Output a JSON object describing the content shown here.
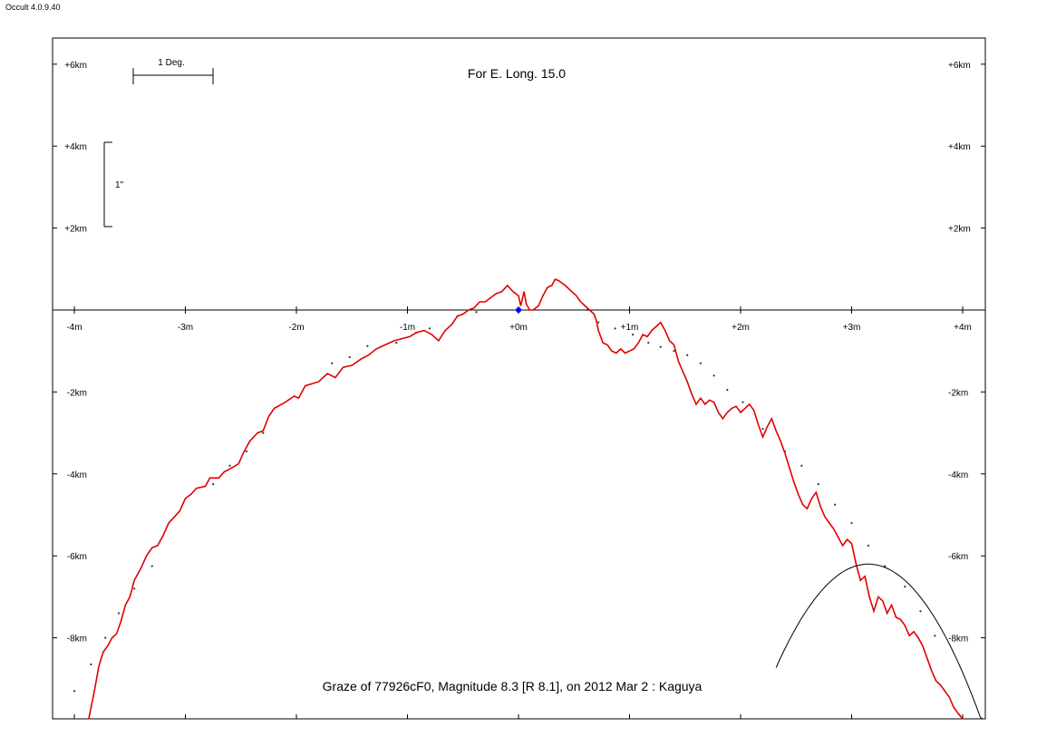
{
  "app": {
    "version": "Occult 4.0.9.40"
  },
  "chart_data": {
    "type": "line",
    "title": "For E. Long. 15.0",
    "caption": "Graze of  77926cF0,  Magnitude 8.3 [R 8.1],  on 2012 Mar  2  :  Kaguya",
    "scale_labels": {
      "degree": "1 Deg.",
      "arcsec": "1\""
    },
    "xlim": [
      -4.1,
      4.3
    ],
    "ylim": [
      -10,
      6.6
    ],
    "grid": false,
    "x_ticks": [
      {
        "value": -4,
        "label": "-4m"
      },
      {
        "value": -3,
        "label": "-3m"
      },
      {
        "value": -2,
        "label": "-2m"
      },
      {
        "value": -1,
        "label": "-1m"
      },
      {
        "value": 0,
        "label": "+0m"
      },
      {
        "value": 1,
        "label": "+1m"
      },
      {
        "value": 2,
        "label": "+2m"
      },
      {
        "value": 3,
        "label": "+3m"
      },
      {
        "value": 4,
        "label": "+4m"
      }
    ],
    "y_ticks": [
      {
        "value": 6,
        "label": "+6km"
      },
      {
        "value": 4,
        "label": "+4km"
      },
      {
        "value": 2,
        "label": "+2km"
      },
      {
        "value": -2,
        "label": "-2km"
      },
      {
        "value": -4,
        "label": "-4km"
      },
      {
        "value": -6,
        "label": "-6km"
      },
      {
        "value": -8,
        "label": "-8km"
      }
    ],
    "colors": {
      "profile": "#e00000",
      "reference": "#333333",
      "central_point": "#0000ff",
      "curve": "#000000"
    },
    "series": [
      {
        "kind": "limb_profile_line",
        "points": [
          [
            -3.87,
            -10.0
          ],
          [
            -3.82,
            -9.3
          ],
          [
            -3.78,
            -8.7
          ],
          [
            -3.74,
            -8.35
          ],
          [
            -3.7,
            -8.2
          ],
          [
            -3.66,
            -8.0
          ],
          [
            -3.62,
            -7.9
          ],
          [
            -3.58,
            -7.6
          ],
          [
            -3.54,
            -7.2
          ],
          [
            -3.5,
            -7.0
          ],
          [
            -3.46,
            -6.6
          ],
          [
            -3.4,
            -6.3
          ],
          [
            -3.35,
            -6.0
          ],
          [
            -3.3,
            -5.8
          ],
          [
            -3.25,
            -5.75
          ],
          [
            -3.2,
            -5.5
          ],
          [
            -3.15,
            -5.2
          ],
          [
            -3.1,
            -5.05
          ],
          [
            -3.05,
            -4.9
          ],
          [
            -3.0,
            -4.6
          ],
          [
            -2.95,
            -4.5
          ],
          [
            -2.9,
            -4.35
          ],
          [
            -2.82,
            -4.3
          ],
          [
            -2.78,
            -4.1
          ],
          [
            -2.7,
            -4.1
          ],
          [
            -2.65,
            -3.95
          ],
          [
            -2.58,
            -3.85
          ],
          [
            -2.52,
            -3.75
          ],
          [
            -2.48,
            -3.5
          ],
          [
            -2.42,
            -3.2
          ],
          [
            -2.35,
            -3.0
          ],
          [
            -2.3,
            -2.95
          ],
          [
            -2.25,
            -2.6
          ],
          [
            -2.2,
            -2.4
          ],
          [
            -2.1,
            -2.25
          ],
          [
            -2.02,
            -2.1
          ],
          [
            -1.98,
            -2.15
          ],
          [
            -1.92,
            -1.85
          ],
          [
            -1.8,
            -1.75
          ],
          [
            -1.72,
            -1.55
          ],
          [
            -1.65,
            -1.65
          ],
          [
            -1.58,
            -1.4
          ],
          [
            -1.5,
            -1.35
          ],
          [
            -1.42,
            -1.2
          ],
          [
            -1.35,
            -1.1
          ],
          [
            -1.28,
            -0.95
          ],
          [
            -1.2,
            -0.85
          ],
          [
            -1.12,
            -0.75
          ],
          [
            -1.05,
            -0.7
          ],
          [
            -0.98,
            -0.65
          ],
          [
            -0.92,
            -0.55
          ],
          [
            -0.85,
            -0.5
          ],
          [
            -0.78,
            -0.6
          ],
          [
            -0.72,
            -0.75
          ],
          [
            -0.66,
            -0.5
          ],
          [
            -0.6,
            -0.35
          ],
          [
            -0.55,
            -0.15
          ],
          [
            -0.5,
            -0.1
          ],
          [
            -0.45,
            0.0
          ],
          [
            -0.4,
            0.05
          ],
          [
            -0.35,
            0.2
          ],
          [
            -0.3,
            0.2
          ],
          [
            -0.25,
            0.3
          ],
          [
            -0.2,
            0.4
          ],
          [
            -0.15,
            0.45
          ],
          [
            -0.1,
            0.6
          ],
          [
            -0.05,
            0.45
          ],
          [
            0.0,
            0.35
          ],
          [
            0.02,
            0.1
          ],
          [
            0.05,
            0.45
          ],
          [
            0.07,
            0.15
          ],
          [
            0.1,
            0.0
          ],
          [
            0.13,
            0.0
          ],
          [
            0.18,
            0.1
          ],
          [
            0.22,
            0.35
          ],
          [
            0.26,
            0.55
          ],
          [
            0.3,
            0.6
          ],
          [
            0.33,
            0.75
          ],
          [
            0.36,
            0.72
          ],
          [
            0.42,
            0.6
          ],
          [
            0.48,
            0.45
          ],
          [
            0.52,
            0.35
          ],
          [
            0.56,
            0.2
          ],
          [
            0.6,
            0.1
          ],
          [
            0.64,
            0.0
          ],
          [
            0.68,
            -0.1
          ],
          [
            0.7,
            -0.25
          ],
          [
            0.72,
            -0.5
          ],
          [
            0.76,
            -0.8
          ],
          [
            0.8,
            -0.85
          ],
          [
            0.84,
            -1.0
          ],
          [
            0.88,
            -1.05
          ],
          [
            0.92,
            -0.95
          ],
          [
            0.96,
            -1.05
          ],
          [
            1.0,
            -1.0
          ],
          [
            1.04,
            -0.95
          ],
          [
            1.08,
            -0.8
          ],
          [
            1.12,
            -0.6
          ],
          [
            1.16,
            -0.65
          ],
          [
            1.2,
            -0.5
          ],
          [
            1.24,
            -0.4
          ],
          [
            1.28,
            -0.3
          ],
          [
            1.32,
            -0.5
          ],
          [
            1.36,
            -0.75
          ],
          [
            1.4,
            -0.85
          ],
          [
            1.44,
            -1.25
          ],
          [
            1.48,
            -1.5
          ],
          [
            1.52,
            -1.75
          ],
          [
            1.56,
            -2.05
          ],
          [
            1.6,
            -2.3
          ],
          [
            1.64,
            -2.15
          ],
          [
            1.68,
            -2.3
          ],
          [
            1.72,
            -2.2
          ],
          [
            1.76,
            -2.25
          ],
          [
            1.8,
            -2.5
          ],
          [
            1.84,
            -2.65
          ],
          [
            1.88,
            -2.5
          ],
          [
            1.92,
            -2.4
          ],
          [
            1.96,
            -2.35
          ],
          [
            2.0,
            -2.5
          ],
          [
            2.04,
            -2.4
          ],
          [
            2.08,
            -2.3
          ],
          [
            2.12,
            -2.45
          ],
          [
            2.16,
            -2.8
          ],
          [
            2.2,
            -3.1
          ],
          [
            2.24,
            -2.85
          ],
          [
            2.28,
            -2.65
          ],
          [
            2.32,
            -2.95
          ],
          [
            2.36,
            -3.2
          ],
          [
            2.4,
            -3.5
          ],
          [
            2.44,
            -3.85
          ],
          [
            2.48,
            -4.2
          ],
          [
            2.52,
            -4.5
          ],
          [
            2.56,
            -4.75
          ],
          [
            2.6,
            -4.85
          ],
          [
            2.64,
            -4.6
          ],
          [
            2.68,
            -4.45
          ],
          [
            2.72,
            -4.8
          ],
          [
            2.76,
            -5.05
          ],
          [
            2.8,
            -5.2
          ],
          [
            2.84,
            -5.35
          ],
          [
            2.88,
            -5.55
          ],
          [
            2.92,
            -5.75
          ],
          [
            2.96,
            -5.6
          ],
          [
            3.0,
            -5.7
          ],
          [
            3.04,
            -6.2
          ],
          [
            3.08,
            -6.6
          ],
          [
            3.12,
            -6.5
          ],
          [
            3.16,
            -7.0
          ],
          [
            3.2,
            -7.35
          ],
          [
            3.24,
            -7.0
          ],
          [
            3.28,
            -7.1
          ],
          [
            3.32,
            -7.4
          ],
          [
            3.36,
            -7.2
          ],
          [
            3.4,
            -7.5
          ],
          [
            3.44,
            -7.55
          ],
          [
            3.48,
            -7.7
          ],
          [
            3.52,
            -7.95
          ],
          [
            3.56,
            -7.85
          ],
          [
            3.6,
            -8.0
          ],
          [
            3.64,
            -8.2
          ],
          [
            3.68,
            -8.5
          ],
          [
            3.72,
            -8.8
          ],
          [
            3.76,
            -9.05
          ],
          [
            3.8,
            -9.15
          ],
          [
            3.84,
            -9.3
          ],
          [
            3.88,
            -9.45
          ],
          [
            3.92,
            -9.7
          ],
          [
            3.96,
            -9.85
          ],
          [
            4.0,
            -10.0
          ]
        ]
      },
      {
        "kind": "reference_points",
        "points": [
          [
            -4.0,
            -9.3
          ],
          [
            -3.85,
            -8.65
          ],
          [
            -3.72,
            -8.0
          ],
          [
            -3.6,
            -7.4
          ],
          [
            -3.46,
            -6.8
          ],
          [
            -3.3,
            -6.25
          ],
          [
            -2.75,
            -4.25
          ],
          [
            -2.6,
            -3.8
          ],
          [
            -2.45,
            -3.45
          ],
          [
            -2.3,
            -3.0
          ],
          [
            -1.68,
            -1.3
          ],
          [
            -1.52,
            -1.15
          ],
          [
            -1.36,
            -0.88
          ],
          [
            -1.1,
            -0.8
          ],
          [
            -0.92,
            -0.55
          ],
          [
            -0.8,
            -0.45
          ],
          [
            -0.55,
            -0.15
          ],
          [
            -0.38,
            -0.05
          ],
          [
            0.62,
            0.0
          ],
          [
            0.72,
            -0.3
          ],
          [
            0.87,
            -0.45
          ],
          [
            1.03,
            -0.6
          ],
          [
            1.17,
            -0.8
          ],
          [
            1.28,
            -0.9
          ],
          [
            1.4,
            -1.0
          ],
          [
            1.52,
            -1.1
          ],
          [
            1.64,
            -1.3
          ],
          [
            1.76,
            -1.6
          ],
          [
            1.88,
            -1.95
          ],
          [
            2.02,
            -2.25
          ],
          [
            2.2,
            -2.9
          ],
          [
            2.4,
            -3.45
          ],
          [
            2.55,
            -3.8
          ],
          [
            2.7,
            -4.25
          ],
          [
            2.85,
            -4.75
          ],
          [
            3.0,
            -5.2
          ],
          [
            3.15,
            -5.75
          ],
          [
            3.3,
            -6.25
          ],
          [
            3.48,
            -6.75
          ],
          [
            3.62,
            -7.35
          ],
          [
            3.75,
            -7.95
          ]
        ]
      }
    ],
    "central_point": {
      "x": 0.0,
      "y": 0.0
    },
    "curve": {
      "apex": [
        3.15,
        -6.2
      ],
      "spread": 0.65,
      "x_range": [
        2.32,
        4.2
      ]
    }
  }
}
